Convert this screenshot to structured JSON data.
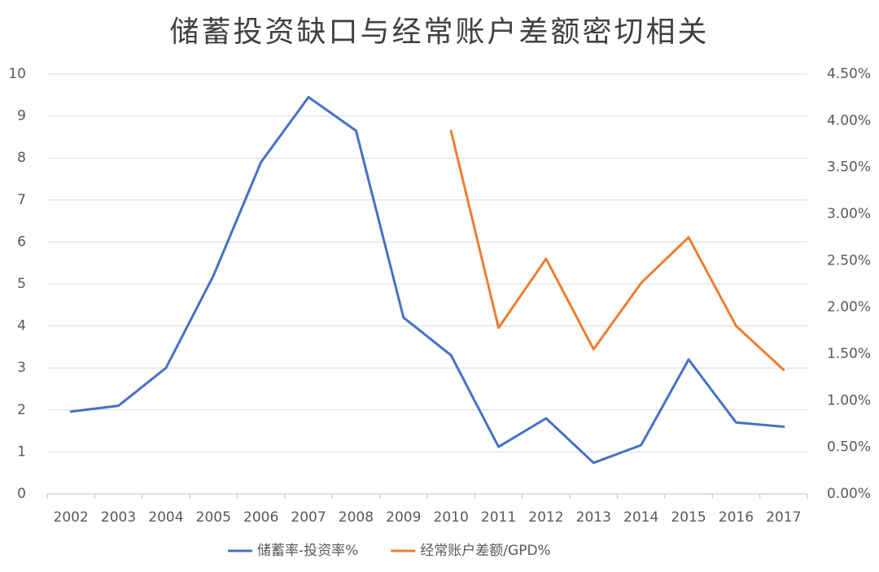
{
  "chart_data": {
    "type": "line",
    "title": "储蓄投资缺口与经常账户差额密切相关",
    "categories": [
      "2002",
      "2003",
      "2004",
      "2005",
      "2006",
      "2007",
      "2008",
      "2009",
      "2010",
      "2011",
      "2012",
      "2013",
      "2014",
      "2015",
      "2016",
      "2017"
    ],
    "series": [
      {
        "name": "储蓄率-投资率%",
        "color": "#4472c4",
        "axis": "y",
        "values": [
          1.96,
          2.1,
          3.0,
          5.2,
          7.9,
          9.45,
          8.65,
          4.2,
          3.3,
          1.12,
          1.8,
          0.74,
          1.16,
          3.2,
          1.7,
          1.6
        ]
      },
      {
        "name": "经常账户差额/GPD%",
        "color": "#ed7d31",
        "axis": "y2",
        "values": [
          null,
          null,
          null,
          null,
          null,
          null,
          null,
          null,
          3.89,
          1.78,
          2.52,
          1.55,
          2.26,
          2.75,
          1.8,
          1.33
        ]
      }
    ],
    "ylim": [
      0,
      10
    ],
    "yticks": [
      0,
      1,
      2,
      3,
      4,
      5,
      6,
      7,
      8,
      9,
      10
    ],
    "y2lim": [
      0,
      4.5
    ],
    "y2ticks": [
      {
        "value": 0,
        "label": "0.00%"
      },
      {
        "value": 0.5,
        "label": "0.50%"
      },
      {
        "value": 1,
        "label": "1.00%"
      },
      {
        "value": 1.5,
        "label": "1.50%"
      },
      {
        "value": 2,
        "label": "2.00%"
      },
      {
        "value": 2.5,
        "label": "2.50%"
      },
      {
        "value": 3,
        "label": "3.00%"
      },
      {
        "value": 3.5,
        "label": "3.50%"
      },
      {
        "value": 4,
        "label": "4.00%"
      },
      {
        "value": 4.5,
        "label": "4.50%"
      }
    ],
    "grid": true,
    "legend": "bottom"
  }
}
